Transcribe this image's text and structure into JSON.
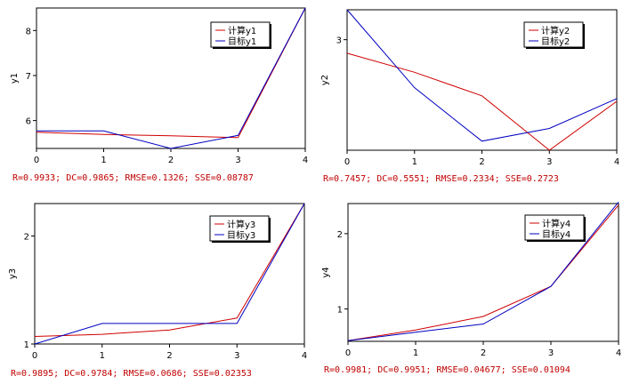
{
  "colors": {
    "computed": "#d00000",
    "target": "#0000c0",
    "stats": "#c00000"
  },
  "chart_data": [
    {
      "type": "line",
      "ylabel": "y1",
      "x": [
        0,
        1,
        2,
        3,
        4
      ],
      "xlim": [
        0,
        4
      ],
      "ylim": [
        5.38,
        8.5
      ],
      "xticks": [
        "0",
        "1",
        "2",
        "3",
        "4"
      ],
      "yticks": [
        6,
        7,
        8
      ],
      "legend": "top-right",
      "series": [
        {
          "name": "计算y1",
          "values": [
            5.74,
            5.69,
            5.66,
            5.62,
            8.5
          ]
        },
        {
          "name": "目标y1",
          "values": [
            5.77,
            5.77,
            5.38,
            5.67,
            8.5
          ]
        }
      ],
      "stats": "R=0.9933; DC=0.9865; RMSE=0.1326; SSE=0.08787"
    },
    {
      "type": "line",
      "ylabel": "y2",
      "x": [
        0,
        1,
        2,
        3,
        4
      ],
      "xlim": [
        0,
        4
      ],
      "ylim": [
        1.78,
        3.33
      ],
      "xticks": [
        "0",
        "1",
        "2",
        "3",
        "4"
      ],
      "yticks": [
        3
      ],
      "legend": "top-right",
      "series": [
        {
          "name": "计算y2",
          "values": [
            2.85,
            2.64,
            2.38,
            1.78,
            2.32
          ]
        },
        {
          "name": "目标y2",
          "values": [
            3.33,
            2.47,
            1.88,
            2.02,
            2.35
          ]
        }
      ],
      "stats": "R=0.7457; DC=0.5551; RMSE=0.2334; SSE=0.2723"
    },
    {
      "type": "line",
      "ylabel": "y3",
      "x": [
        0,
        1,
        2,
        3,
        4
      ],
      "xlim": [
        0,
        4
      ],
      "ylim": [
        1.0,
        2.3
      ],
      "xticks": [
        "0",
        "1",
        "2",
        "3",
        "4"
      ],
      "yticks": [
        1,
        2
      ],
      "legend": "top-right",
      "series": [
        {
          "name": "计算y3",
          "values": [
            1.07,
            1.09,
            1.13,
            1.24,
            2.3
          ]
        },
        {
          "name": "目标y3",
          "values": [
            1.0,
            1.19,
            1.19,
            1.19,
            2.3
          ]
        }
      ],
      "stats": "R=0.9895; DC=0.9784; RMSE=0.0686; SSE=0.02353"
    },
    {
      "type": "line",
      "ylabel": "y4",
      "x": [
        0,
        1,
        2,
        3,
        4
      ],
      "xlim": [
        0,
        4
      ],
      "ylim": [
        0.57,
        2.4
      ],
      "xticks": [
        "0",
        "1",
        "2",
        "3",
        "4"
      ],
      "yticks": [
        1,
        2
      ],
      "legend": "top-right",
      "series": [
        {
          "name": "计算y4",
          "values": [
            0.58,
            0.72,
            0.9,
            1.3,
            2.38
          ]
        },
        {
          "name": "目标y4",
          "values": [
            0.58,
            0.69,
            0.8,
            1.3,
            2.42
          ]
        }
      ],
      "stats": "R=0.9981; DC=0.9951; RMSE=0.04677; SSE=0.01094"
    }
  ]
}
